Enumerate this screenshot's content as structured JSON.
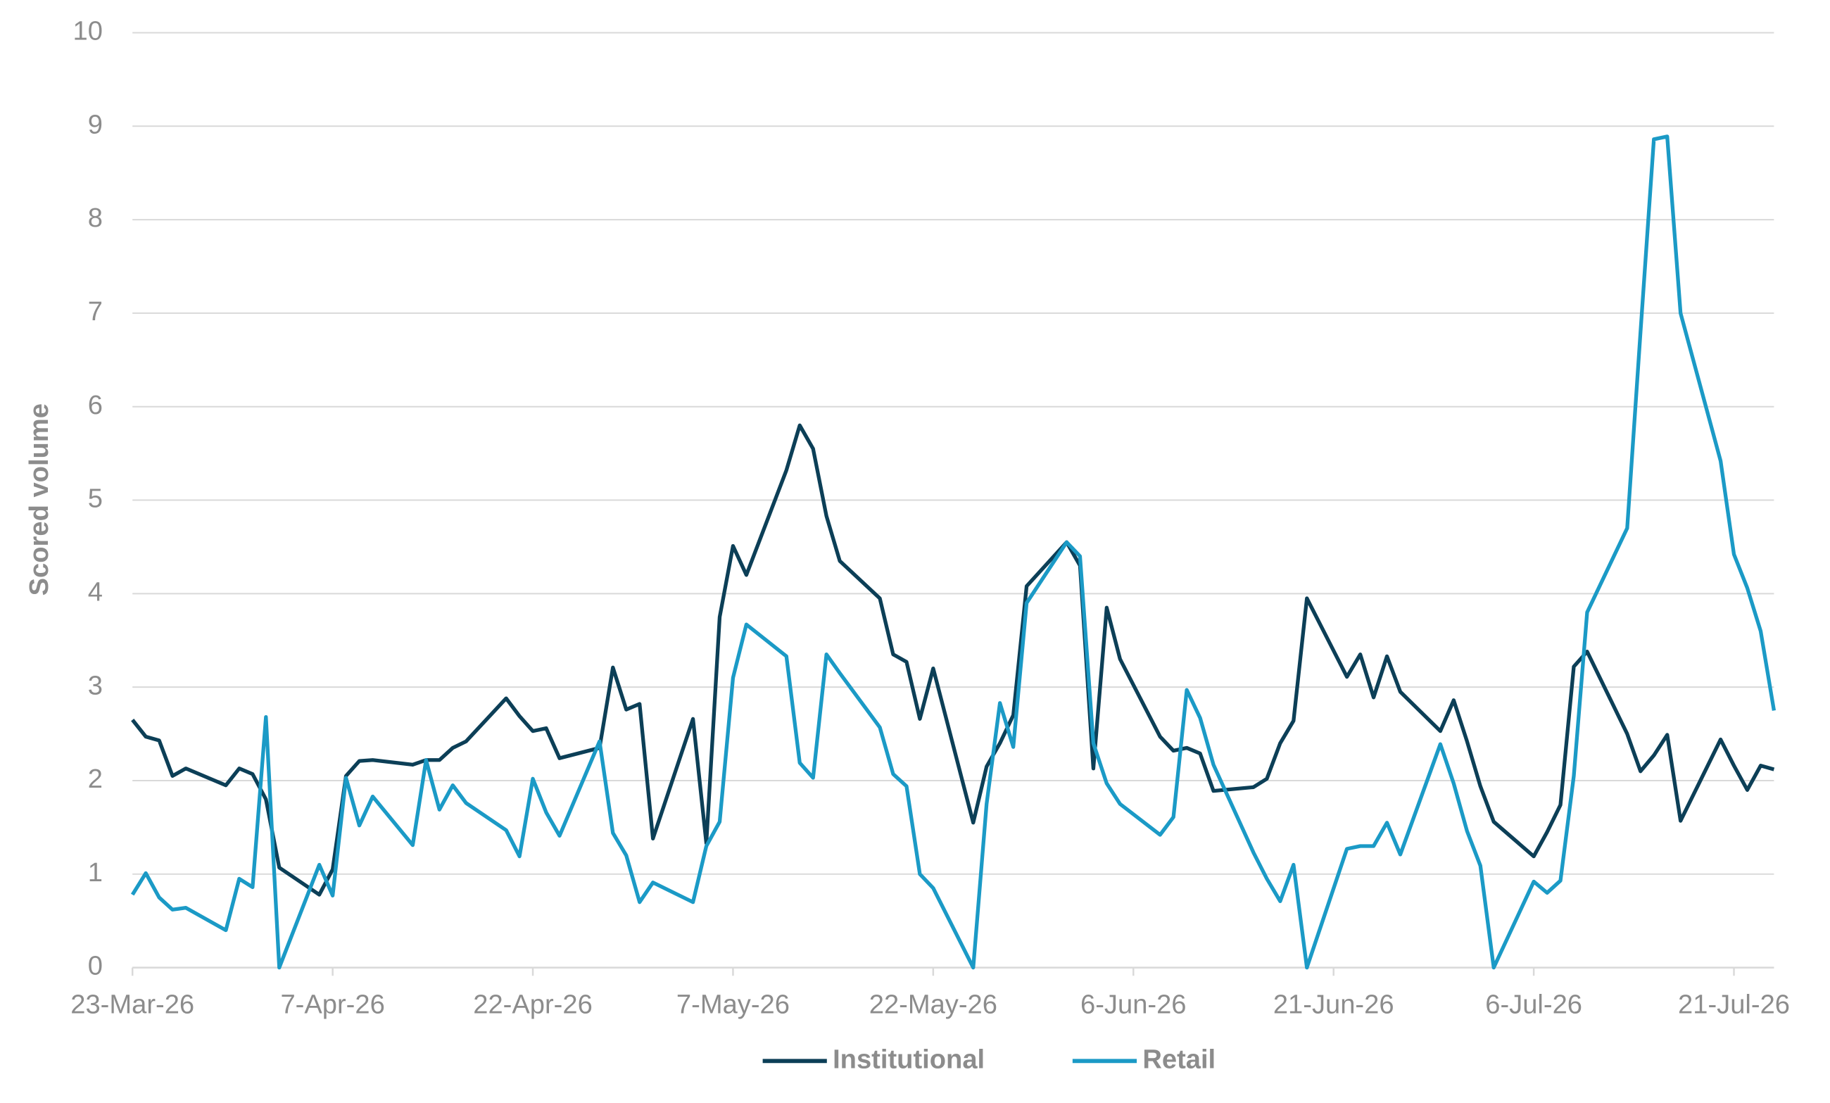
{
  "chart_data": {
    "type": "line",
    "y_label": "Scored volume",
    "x": [
      "2026-03-23",
      "2026-03-24",
      "2026-03-25",
      "2026-03-26",
      "2026-03-27",
      "2026-03-30",
      "2026-03-31",
      "2026-04-01",
      "2026-04-02",
      "2026-04-03",
      "2026-04-06",
      "2026-04-07",
      "2026-04-08",
      "2026-04-09",
      "2026-04-10",
      "2026-04-13",
      "2026-04-14",
      "2026-04-15",
      "2026-04-16",
      "2026-04-17",
      "2026-04-20",
      "2026-04-21",
      "2026-04-22",
      "2026-04-23",
      "2026-04-24",
      "2026-04-27",
      "2026-04-28",
      "2026-04-29",
      "2026-04-30",
      "2026-05-01",
      "2026-05-04",
      "2026-05-05",
      "2026-05-06",
      "2026-05-07",
      "2026-05-08",
      "2026-05-11",
      "2026-05-12",
      "2026-05-13",
      "2026-05-14",
      "2026-05-15",
      "2026-05-18",
      "2026-05-19",
      "2026-05-20",
      "2026-05-21",
      "2026-05-22",
      "2026-05-25",
      "2026-05-26",
      "2026-05-27",
      "2026-05-28",
      "2026-05-29",
      "2026-06-01",
      "2026-06-02",
      "2026-06-03",
      "2026-06-04",
      "2026-06-05",
      "2026-06-08",
      "2026-06-09",
      "2026-06-10",
      "2026-06-11",
      "2026-06-12",
      "2026-06-15",
      "2026-06-16",
      "2026-06-17",
      "2026-06-18",
      "2026-06-19",
      "2026-06-22",
      "2026-06-23",
      "2026-06-24",
      "2026-06-25",
      "2026-06-26",
      "2026-06-29",
      "2026-06-30",
      "2026-07-01",
      "2026-07-02",
      "2026-07-03",
      "2026-07-06",
      "2026-07-07",
      "2026-07-08",
      "2026-07-09",
      "2026-07-10",
      "2026-07-13",
      "2026-07-14",
      "2026-07-15",
      "2026-07-16",
      "2026-07-17",
      "2026-07-20",
      "2026-07-21",
      "2026-07-22",
      "2026-07-23",
      "2026-07-24"
    ],
    "series": [
      {
        "name": "Institutional",
        "color": "#0c3f57",
        "values": [
          2.65,
          2.47,
          2.43,
          2.05,
          2.13,
          1.95,
          2.13,
          2.07,
          1.8,
          1.07,
          0.78,
          1.05,
          2.05,
          2.21,
          2.22,
          2.17,
          2.22,
          2.22,
          2.35,
          2.42,
          2.88,
          2.69,
          2.53,
          2.56,
          2.24,
          2.35,
          3.21,
          2.76,
          2.82,
          1.38,
          2.66,
          1.33,
          3.75,
          4.51,
          4.2,
          5.32,
          5.8,
          5.55,
          4.83,
          4.35,
          3.95,
          3.35,
          3.27,
          2.66,
          3.2,
          1.55,
          2.15,
          2.4,
          2.7,
          4.08,
          4.55,
          4.3,
          2.13,
          3.85,
          3.3,
          2.47,
          2.32,
          2.35,
          2.29,
          1.89,
          1.93,
          2.02,
          2.4,
          2.64,
          3.95,
          3.11,
          3.35,
          2.89,
          3.33,
          2.95,
          2.53,
          2.86,
          2.42,
          1.94,
          1.56,
          1.19,
          1.45,
          1.74,
          3.22,
          3.38,
          2.5,
          2.1,
          2.27,
          2.49,
          1.57,
          2.44,
          2.16,
          1.9,
          2.16,
          2.12
        ]
      },
      {
        "name": "Retail",
        "color": "#1b9ac6",
        "values": [
          0.78,
          1.01,
          0.75,
          0.62,
          0.64,
          0.4,
          0.95,
          0.86,
          2.68,
          0,
          1.1,
          0.77,
          2.03,
          1.52,
          1.83,
          1.31,
          2.22,
          1.69,
          1.95,
          1.76,
          1.47,
          1.19,
          2.02,
          1.66,
          1.41,
          2.42,
          1.44,
          1.2,
          0.7,
          0.91,
          0.7,
          1.3,
          1.56,
          3.1,
          3.67,
          3.33,
          2.19,
          2.03,
          3.35,
          3.15,
          2.57,
          2.07,
          1.94,
          1,
          0.85,
          0,
          1.75,
          2.83,
          2.36,
          3.9,
          4.55,
          4.4,
          2.4,
          1.97,
          1.75,
          1.42,
          1.61,
          2.97,
          2.67,
          2.17,
          1.23,
          0.95,
          0.71,
          1.1,
          0,
          1.27,
          1.3,
          1.3,
          1.55,
          1.21,
          2.39,
          1.97,
          1.46,
          1.09,
          0,
          0.92,
          0.8,
          0.93,
          2.05,
          3.8,
          4.7,
          6.8,
          8.86,
          8.89,
          7,
          5.42,
          4.42,
          4.06,
          3.6,
          2.75
        ]
      }
    ],
    "xlim": [
      "2026-03-23",
      "2026-07-24"
    ],
    "xticks": [
      {
        "value": "2026-03-23",
        "label": "23-Mar-26"
      },
      {
        "value": "2026-04-07",
        "label": "7-Apr-26"
      },
      {
        "value": "2026-04-22",
        "label": "22-Apr-26"
      },
      {
        "value": "2026-05-07",
        "label": "7-May-26"
      },
      {
        "value": "2026-05-22",
        "label": "22-May-26"
      },
      {
        "value": "2026-06-06",
        "label": "6-Jun-26"
      },
      {
        "value": "2026-06-21",
        "label": "21-Jun-26"
      },
      {
        "value": "2026-07-06",
        "label": "6-Jul-26"
      },
      {
        "value": "2026-07-21",
        "label": "21-Jul-26"
      }
    ],
    "ylim": [
      0,
      10
    ],
    "yticks": [
      0,
      1,
      2,
      3,
      4,
      5,
      6,
      7,
      8,
      9,
      10
    ],
    "grid": true,
    "legend": "bottom"
  }
}
